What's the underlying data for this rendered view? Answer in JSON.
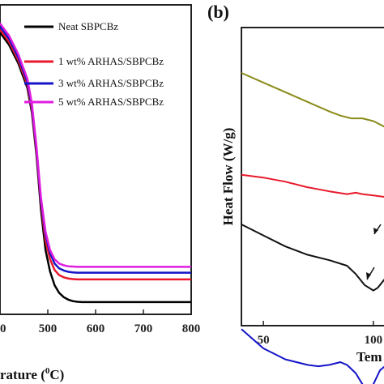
{
  "chart_data": [
    {
      "type": "line",
      "xlabel_pre": "rature (",
      "xlabel_sup": "0",
      "xlabel_post": "C)",
      "x_ticks": [
        "00",
        "500",
        "600",
        "700",
        "800"
      ],
      "xlim": [
        380,
        800
      ],
      "series": [
        {
          "name": "Neat SBPCBz",
          "color": "#000000",
          "x": [
            380,
            400,
            420,
            440,
            450,
            460,
            470,
            480,
            490,
            500,
            510,
            520,
            530,
            540,
            550,
            560,
            600,
            700,
            800
          ],
          "y": [
            92,
            88,
            82,
            74,
            66,
            52,
            34,
            21,
            14,
            9.5,
            7,
            5.6,
            4.8,
            4.3,
            4.1,
            4.0,
            4.0,
            4.0,
            4.0
          ]
        },
        {
          "name": "1 wt% ARHAS/SBPCBz",
          "color": "#e8192c",
          "x": [
            380,
            400,
            420,
            440,
            450,
            460,
            470,
            480,
            490,
            500,
            510,
            520,
            530,
            540,
            550,
            560,
            600,
            700,
            800
          ],
          "y": [
            93,
            89,
            83,
            75,
            67,
            53,
            36,
            24,
            18,
            14.5,
            12.8,
            12.1,
            11.7,
            11.5,
            11.4,
            11.4,
            11.4,
            11.4,
            11.4
          ]
        },
        {
          "name": "3 wt% ARHAS/SBPCBz",
          "color": "#1414c8",
          "x": [
            380,
            400,
            420,
            440,
            450,
            460,
            470,
            480,
            490,
            500,
            510,
            520,
            530,
            540,
            550,
            560,
            600,
            700,
            800
          ],
          "y": [
            94,
            90,
            84,
            76,
            68,
            54,
            37,
            26,
            20,
            16.6,
            15,
            14.3,
            13.9,
            13.7,
            13.6,
            13.6,
            13.6,
            13.6,
            13.6
          ]
        },
        {
          "name": "5 wt% ARHAS/SBPCBz",
          "color": "#e01ee0",
          "x": [
            380,
            400,
            420,
            440,
            450,
            460,
            470,
            480,
            490,
            500,
            510,
            520,
            530,
            540,
            550,
            560,
            600,
            700,
            800
          ],
          "y": [
            95,
            91,
            85,
            77,
            69,
            55,
            38,
            27,
            21,
            18,
            16.6,
            16,
            15.7,
            15.6,
            15.5,
            15.5,
            15.5,
            15.5,
            15.5
          ]
        }
      ]
    },
    {
      "type": "line",
      "panel_label": "(b)",
      "ylabel": "Heat Flow  (W/g)",
      "xlabel": "Tem",
      "x_ticks": [
        "50",
        "100"
      ],
      "xlim": [
        40,
        110
      ],
      "series": [
        {
          "color": "#8b8b1a",
          "x": [
            40,
            50,
            60,
            70,
            80,
            85,
            90,
            95,
            100,
            105,
            110
          ],
          "y": [
            100,
            93,
            86,
            79,
            72,
            69,
            67,
            67,
            65,
            61,
            58
          ]
        },
        {
          "color": "#e8192c",
          "x": [
            40,
            50,
            60,
            70,
            80,
            88,
            92,
            95,
            100,
            105,
            110
          ],
          "y": [
            26,
            24,
            21,
            17,
            14,
            12,
            13,
            12,
            11,
            10,
            9
          ]
        },
        {
          "color": "#111111",
          "x": [
            40,
            50,
            60,
            70,
            80,
            88,
            92,
            96,
            100,
            102,
            105,
            110
          ],
          "y": [
            -10,
            -18,
            -26,
            -32,
            -36,
            -40,
            -46,
            -54,
            -58,
            -56,
            -50,
            -46
          ]
        },
        {
          "color": "#1414c8",
          "x": [
            40,
            50,
            60,
            70,
            75,
            80,
            85,
            88,
            92,
            95,
            98,
            100,
            103,
            106,
            110
          ],
          "y": [
            -86,
            -100,
            -108,
            -112,
            -113,
            -112,
            -110,
            -112,
            -118,
            -126,
            -130,
            -126,
            -116,
            -112,
            -110
          ]
        }
      ]
    }
  ]
}
